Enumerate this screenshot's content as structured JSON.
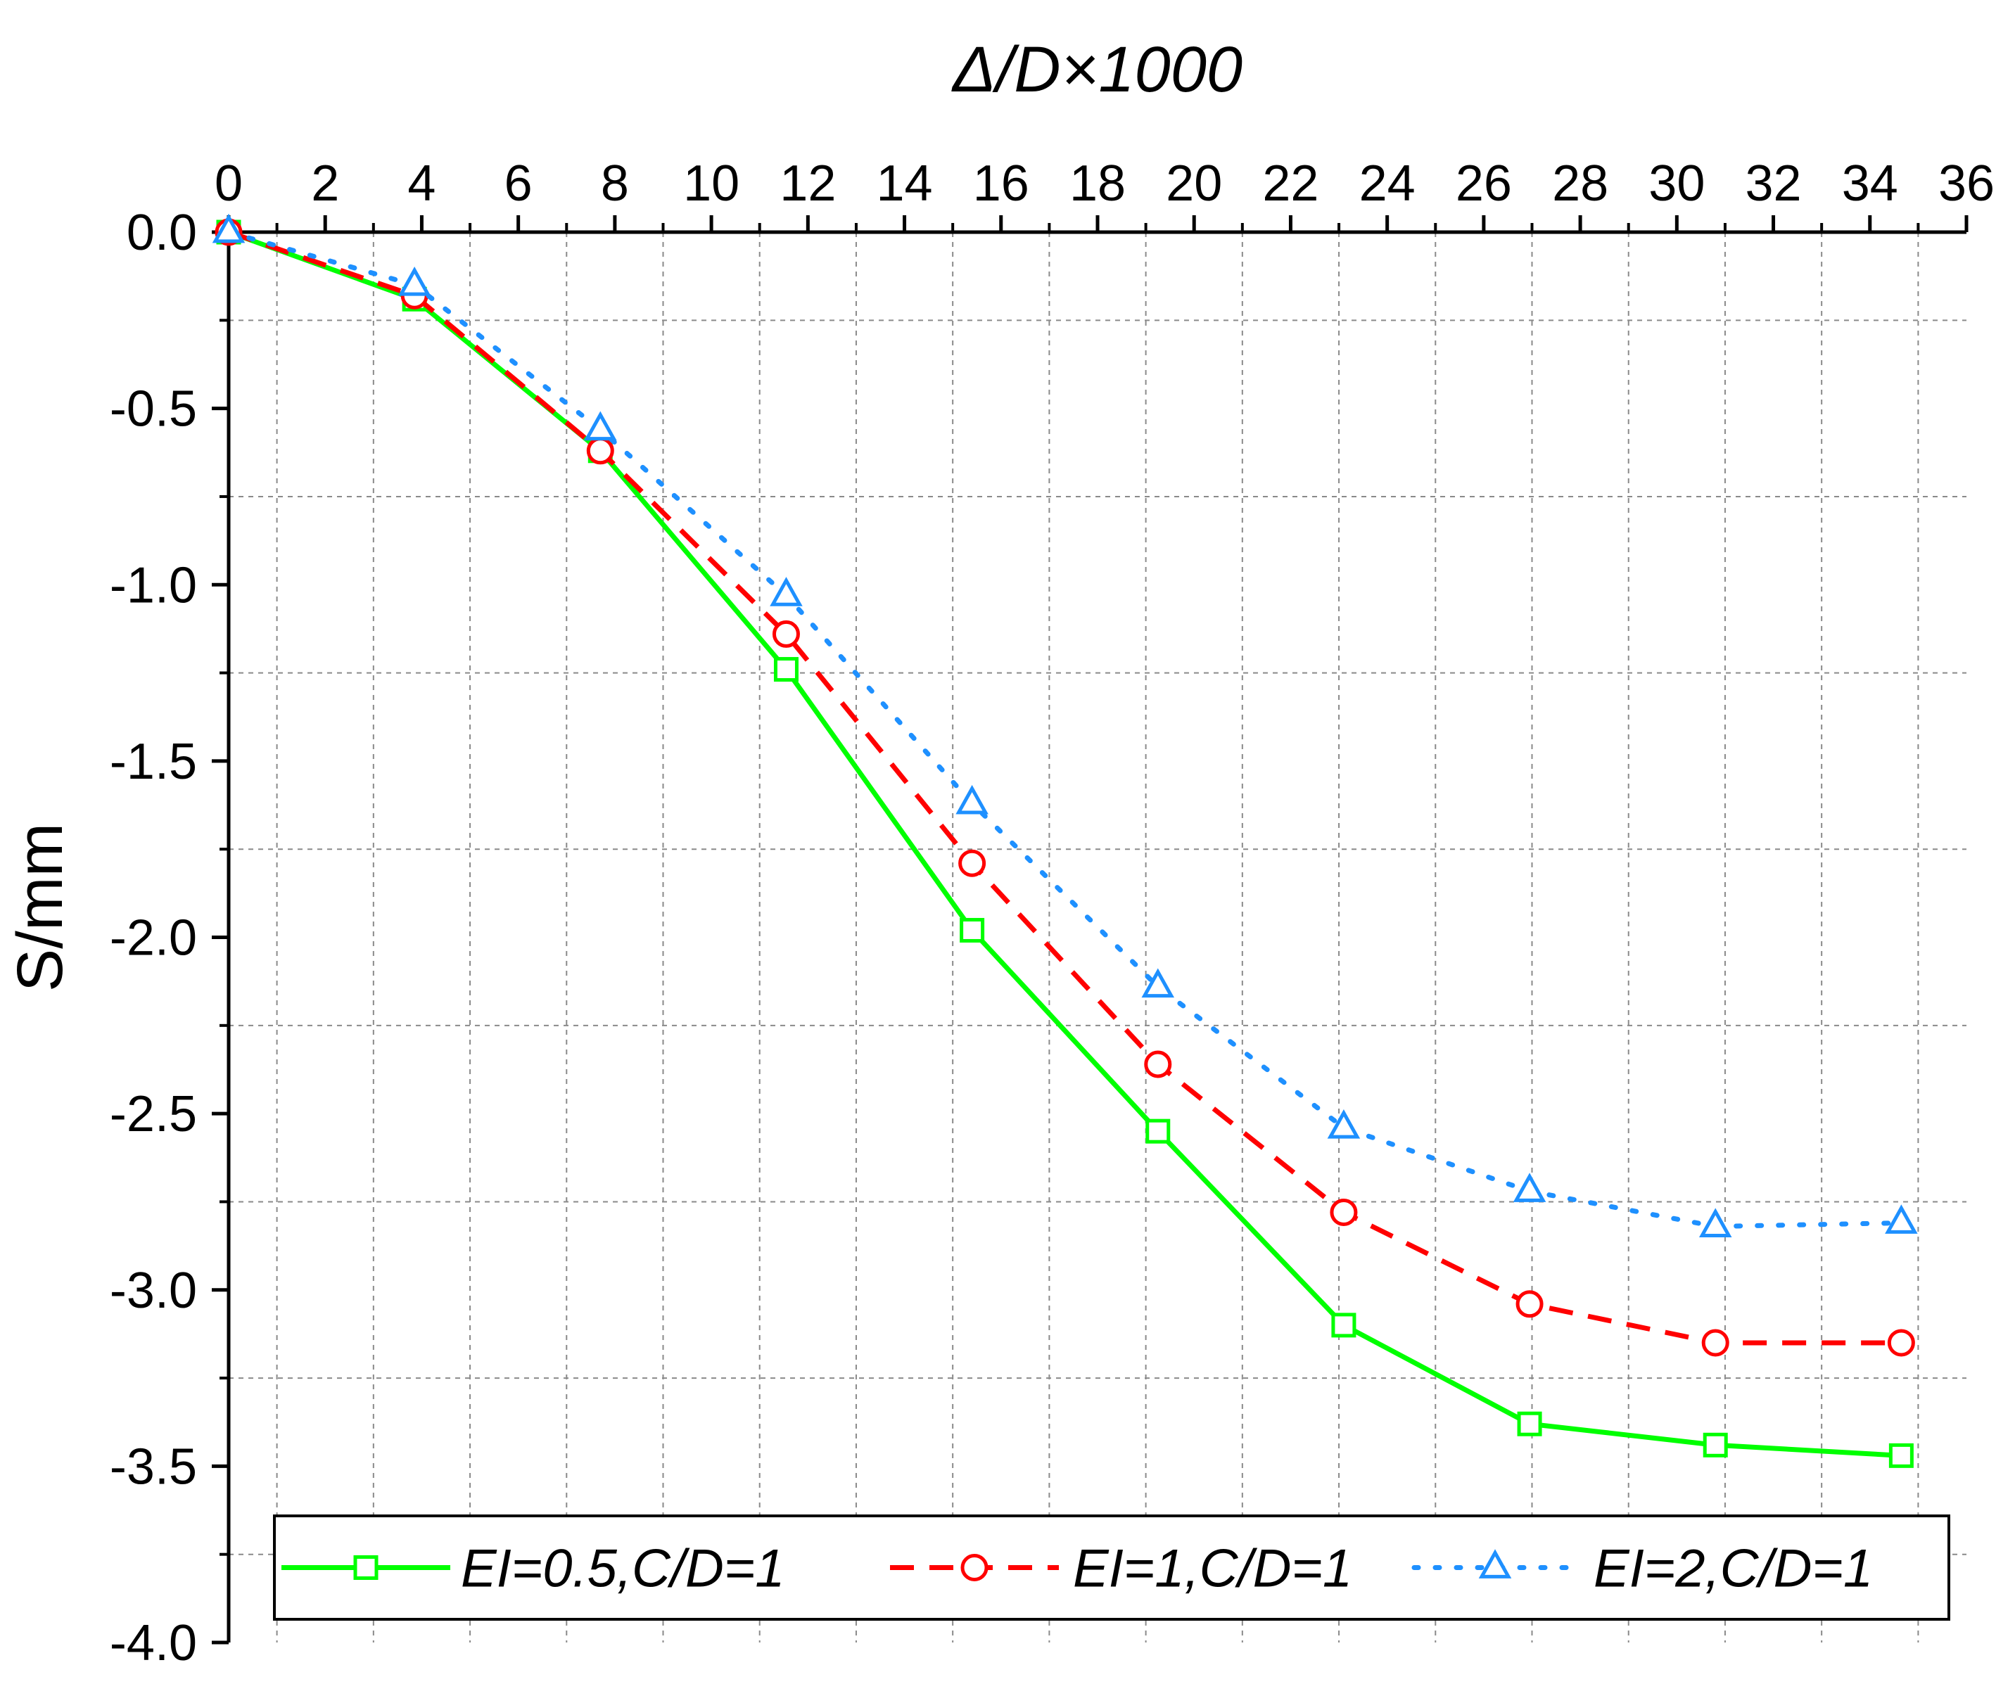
{
  "chart_data": {
    "type": "line",
    "xlabel": "Δ/D×1000",
    "ylabel": "S/mm",
    "xlim": [
      0,
      36
    ],
    "ylim": [
      -4.0,
      0.0
    ],
    "x_axis_position": "top",
    "grid": true,
    "legend_position": "bottom",
    "x_ticks": [
      "0",
      "2",
      "4",
      "6",
      "8",
      "10",
      "12",
      "14",
      "16",
      "18",
      "20",
      "22",
      "24",
      "26",
      "28",
      "30",
      "32",
      "34",
      "36"
    ],
    "y_ticks": [
      "0.0",
      "-0.5",
      "-1.0",
      "-1.5",
      "-2.0",
      "-2.5",
      "-3.0",
      "-3.5",
      "-4.0"
    ],
    "series": [
      {
        "name": "EI=0.5,C/D=1",
        "color": "#00ff00",
        "line_style": "solid",
        "marker": "square",
        "x": [
          0,
          3.85,
          7.7,
          11.55,
          15.4,
          19.25,
          23.1,
          26.95,
          30.8,
          34.65
        ],
        "y": [
          0,
          -0.19,
          -0.62,
          -1.24,
          -1.98,
          -2.55,
          -3.1,
          -3.38,
          -3.44,
          -3.47
        ]
      },
      {
        "name": "EI=1,C/D=1",
        "color": "#ff0000",
        "line_style": "dashed",
        "marker": "circle",
        "x": [
          0,
          3.85,
          7.7,
          11.55,
          15.4,
          19.25,
          23.1,
          26.95,
          30.8,
          34.65
        ],
        "y": [
          0,
          -0.18,
          -0.62,
          -1.14,
          -1.79,
          -2.36,
          -2.78,
          -3.04,
          -3.15,
          -3.15
        ]
      },
      {
        "name": "EI=2,C/D=1",
        "color": "#1e90ff",
        "line_style": "dotted",
        "marker": "triangle",
        "x": [
          0,
          3.85,
          7.7,
          11.55,
          15.4,
          19.25,
          23.1,
          26.95,
          30.8,
          34.65
        ],
        "y": [
          0,
          -0.15,
          -0.56,
          -1.03,
          -1.62,
          -2.14,
          -2.54,
          -2.72,
          -2.82,
          -2.81
        ]
      }
    ]
  }
}
